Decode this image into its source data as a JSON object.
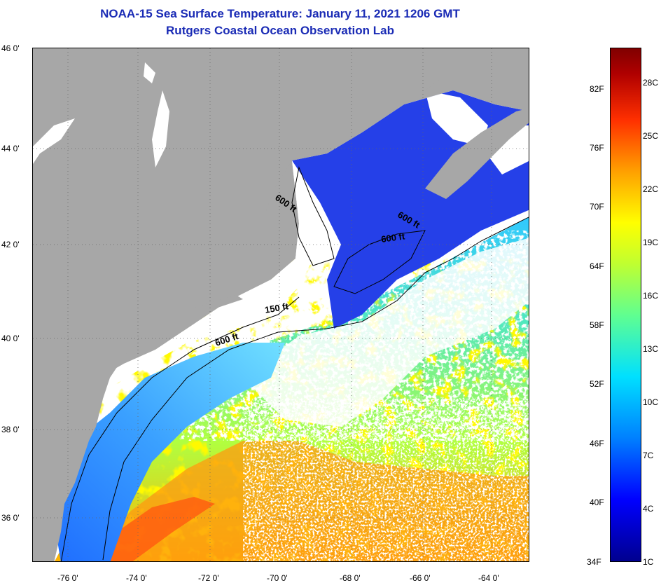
{
  "header": {
    "title": "NOAA-15 Sea Surface Temperature:  January 11, 2021 1206 GMT",
    "subtitle": "Rutgers Coastal Ocean Observation Lab"
  },
  "map": {
    "lat_labels": [
      "46 0'",
      "44 0'",
      "42 0'",
      "40 0'",
      "38 0'",
      "36 0'"
    ],
    "lon_labels": [
      "-76 0'",
      "-74 0'",
      "-72 0'",
      "-70 0'",
      "-68 0'",
      "-66 0'",
      "-64 0'"
    ],
    "contour_labels": [
      "600 ft",
      "600 ft",
      "600 ft",
      "150 ft",
      "600 ft"
    ]
  },
  "colorbar": {
    "fahrenheit": [
      "82F",
      "76F",
      "70F",
      "64F",
      "58F",
      "52F",
      "46F",
      "40F",
      "34F"
    ],
    "celsius": [
      "28C",
      "25C",
      "22C",
      "19C",
      "16C",
      "13C",
      "10C",
      "7C",
      "4C",
      "1C"
    ]
  },
  "colors": {
    "land": "#a7a7a7",
    "cloud": "#ffffff",
    "title": "#1a2bb5"
  }
}
